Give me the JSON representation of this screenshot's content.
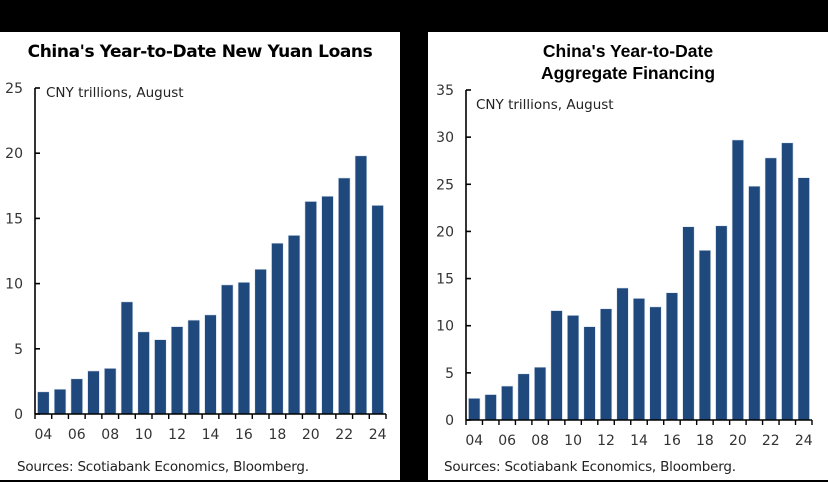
{
  "colors": {
    "bar": "#1f497d",
    "bar_edge": "#dbe4f0",
    "axis": "#000000",
    "frame": "#000000"
  },
  "chart_data": [
    {
      "type": "bar",
      "title": "China's Year-to-Date New Yuan Loans",
      "annotation": "CNY trillions, August",
      "xlabel": "",
      "ylabel": "",
      "ylim": [
        0,
        25
      ],
      "yticks": [
        0,
        5,
        10,
        15,
        20,
        25
      ],
      "xtick_labels": [
        "04",
        "06",
        "08",
        "10",
        "12",
        "14",
        "16",
        "18",
        "20",
        "22",
        "24"
      ],
      "categories": [
        "04",
        "05",
        "06",
        "07",
        "08",
        "09",
        "10",
        "11",
        "12",
        "13",
        "14",
        "15",
        "16",
        "17",
        "18",
        "19",
        "20",
        "21",
        "22",
        "23",
        "24"
      ],
      "values": [
        1.7,
        1.9,
        2.7,
        3.3,
        3.5,
        8.6,
        6.3,
        5.7,
        6.7,
        7.2,
        7.6,
        9.9,
        10.1,
        11.1,
        13.1,
        13.7,
        16.3,
        16.7,
        18.1,
        19.8,
        16.0
      ],
      "source": "Sources: Scotiabank Economics, Bloomberg.",
      "grid": false,
      "legend": null
    },
    {
      "type": "bar",
      "title": "China's Year-to-Date Aggregate Financing",
      "title_lines": [
        "China's Year-to-Date",
        "Aggregate Financing"
      ],
      "annotation": "CNY trillions, August",
      "xlabel": "",
      "ylabel": "",
      "ylim": [
        0,
        35
      ],
      "yticks": [
        0,
        5,
        10,
        15,
        20,
        25,
        30,
        35
      ],
      "xtick_labels": [
        "04",
        "06",
        "08",
        "10",
        "12",
        "14",
        "16",
        "18",
        "20",
        "22",
        "24"
      ],
      "categories": [
        "04",
        "05",
        "06",
        "07",
        "08",
        "09",
        "10",
        "11",
        "12",
        "13",
        "14",
        "15",
        "16",
        "17",
        "18",
        "19",
        "20",
        "21",
        "22",
        "23",
        "24"
      ],
      "values": [
        2.3,
        2.7,
        3.6,
        4.9,
        5.6,
        11.6,
        11.1,
        9.9,
        11.8,
        14.0,
        12.9,
        12.0,
        13.5,
        20.5,
        18.0,
        20.6,
        29.7,
        24.8,
        27.8,
        29.4,
        25.7
      ],
      "source": "Sources: Scotiabank Economics, Bloomberg.",
      "grid": false,
      "legend": null
    }
  ],
  "left": {
    "title": "China's Year-to-Date New Yuan Loans",
    "annotation": "CNY trillions, August",
    "source": "Sources: Scotiabank Economics, Bloomberg."
  },
  "right": {
    "title_line1": "China's Year-to-Date",
    "title_line2": "Aggregate Financing",
    "annotation": "CNY trillions, August",
    "source": "Sources: Scotiabank Economics, Bloomberg."
  }
}
